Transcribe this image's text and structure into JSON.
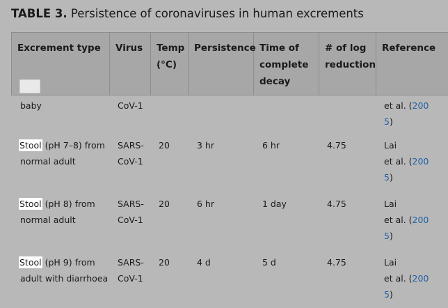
{
  "caption": {
    "label": "TABLE 3.",
    "text": " Persistence of coronaviruses in human excrements"
  },
  "table": {
    "headers": [
      {
        "line1": "Excrement type",
        "line2": "",
        "line3": ""
      },
      {
        "line1": "Virus",
        "line2": "",
        "line3": ""
      },
      {
        "line1": "Temp",
        "line2": "(°C)",
        "line3": ""
      },
      {
        "line1": "Persistence",
        "line2": "",
        "line3": ""
      },
      {
        "line1": "Time of",
        "line2": "complete",
        "line3": "decay"
      },
      {
        "line1": "# of log",
        "line2": "reduction",
        "line3": ""
      },
      {
        "line1": "Reference",
        "line2": "",
        "line3": ""
      }
    ],
    "partial_row": {
      "excrement_line1": "baby",
      "virus_line1": "CoV-1",
      "ref_line1_prefix": "et al. (",
      "ref_line1_link": "200",
      "ref_line2_link": "5",
      "ref_line2_suffix": ")"
    },
    "rows": [
      {
        "excrement_highlight": "Stool",
        "excrement_rest": " (pH 7–8) from",
        "excrement_line2": "normal adult",
        "virus_line1": "SARS-",
        "virus_line2": "CoV-1",
        "temp": "20",
        "persistence": "3 hr",
        "decay": "6 hr",
        "log_reduction": "4.75",
        "ref_line1": "Lai",
        "ref_line2_prefix": "et al. (",
        "ref_line2_link": "200",
        "ref_line3_link": "5",
        "ref_line3_suffix": ")"
      },
      {
        "excrement_highlight": "Stool",
        "excrement_rest": " (pH 8) from",
        "excrement_line2": "normal adult",
        "virus_line1": "SARS-",
        "virus_line2": "CoV-1",
        "temp": "20",
        "persistence": "6 hr",
        "decay": "1 day",
        "log_reduction": "4.75",
        "ref_line1": "Lai",
        "ref_line2_prefix": "et al. (",
        "ref_line2_link": "200",
        "ref_line3_link": "5",
        "ref_line3_suffix": ")"
      },
      {
        "excrement_highlight": "Stool",
        "excrement_rest": " (pH 9) from",
        "excrement_line2": "adult with diarrhoea",
        "virus_line1": "SARS-",
        "virus_line2": "CoV-1",
        "temp": "20",
        "persistence": "4 d",
        "decay": "5 d",
        "log_reduction": "4.75",
        "ref_line1": "Lai",
        "ref_line2_prefix": "et al. (",
        "ref_line2_link": "200",
        "ref_line3_link": "5",
        "ref_line3_suffix": ")"
      }
    ]
  }
}
